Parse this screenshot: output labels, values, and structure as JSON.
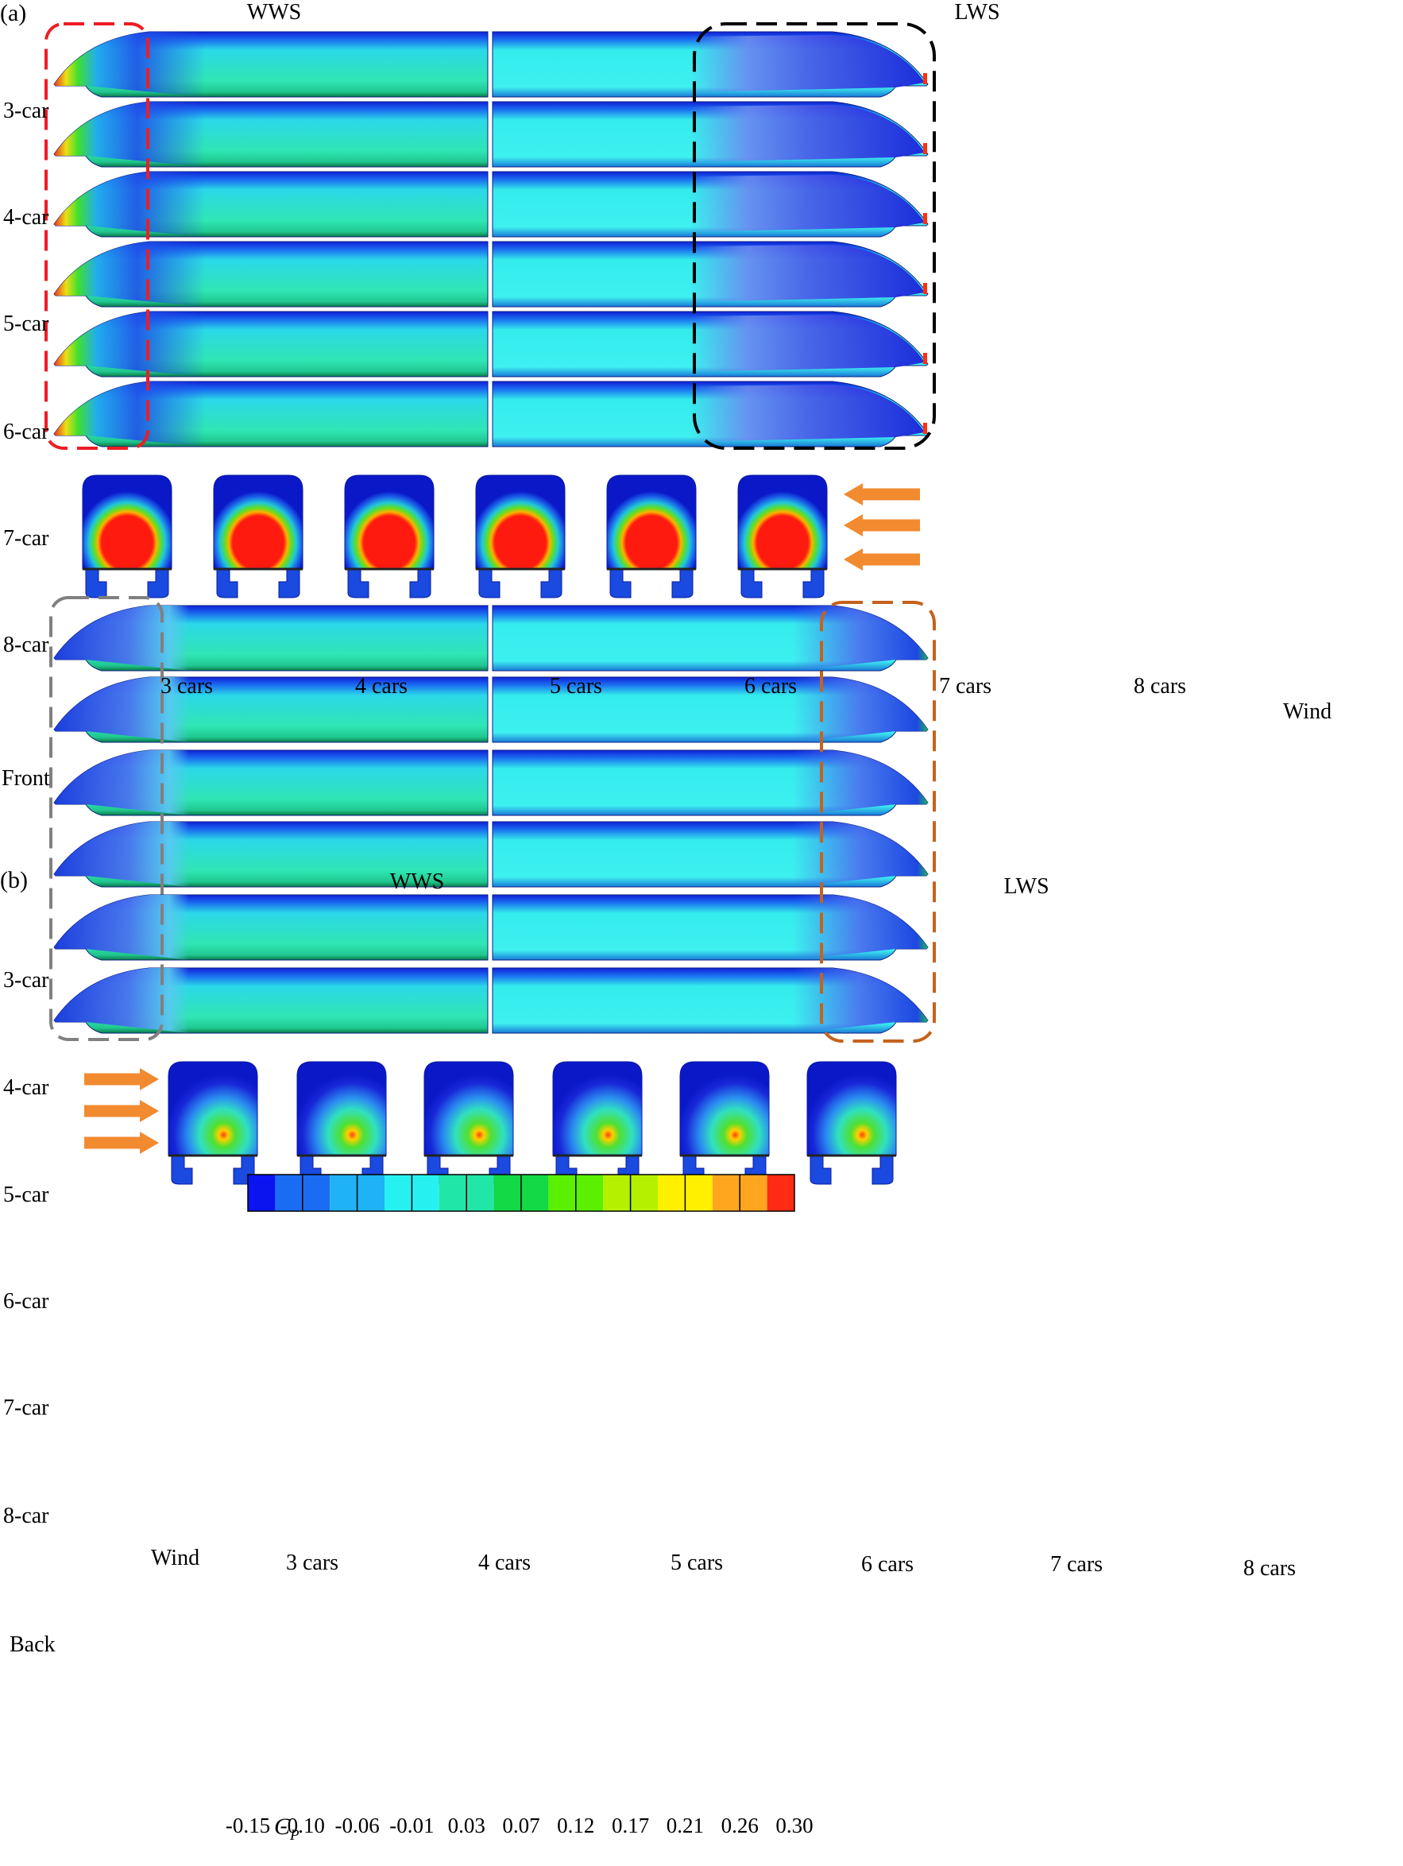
{
  "panel_a": {
    "label": "(a)",
    "wws": "WWS",
    "lws": "LWS",
    "rows": [
      "3-car",
      "4-car",
      "5-car",
      "6-car",
      "7-car",
      "8-car"
    ],
    "caps": [
      "3 cars",
      "4 cars",
      "5 cars",
      "6 cars",
      "7 cars",
      "8 cars"
    ],
    "view": "Front",
    "wind": "Wind",
    "box_colors": [
      "#ee1c24",
      "#000000"
    ]
  },
  "panel_b": {
    "label": "(b)",
    "wws": "WWS",
    "lws": "LWS",
    "rows": [
      "3-car",
      "4-car",
      "5-car",
      "6-car",
      "7-car",
      "8-car"
    ],
    "caps": [
      "3 cars",
      "4 cars",
      "5 cars",
      "6 cars",
      "7 cars",
      "8 cars"
    ],
    "view": "Back",
    "wind": "Wind",
    "box_colors": [
      "#808080",
      "#c5621d"
    ]
  },
  "colorbar": {
    "symbol": "C",
    "subscript": "P",
    "ticks": [
      "-0.15",
      "-0.10",
      "-0.06",
      "-0.01",
      "0.03",
      "0.07",
      "0.12",
      "0.17",
      "0.21",
      "0.26",
      "0.30"
    ],
    "colors": [
      "#0a14f0",
      "#1a6cf2",
      "#1fb2f5",
      "#27f0f0",
      "#20e6a8",
      "#12d944",
      "#5af000",
      "#b4f000",
      "#fff000",
      "#ffa51e",
      "#ff2b14"
    ]
  },
  "arrow_color": "#f28a30"
}
